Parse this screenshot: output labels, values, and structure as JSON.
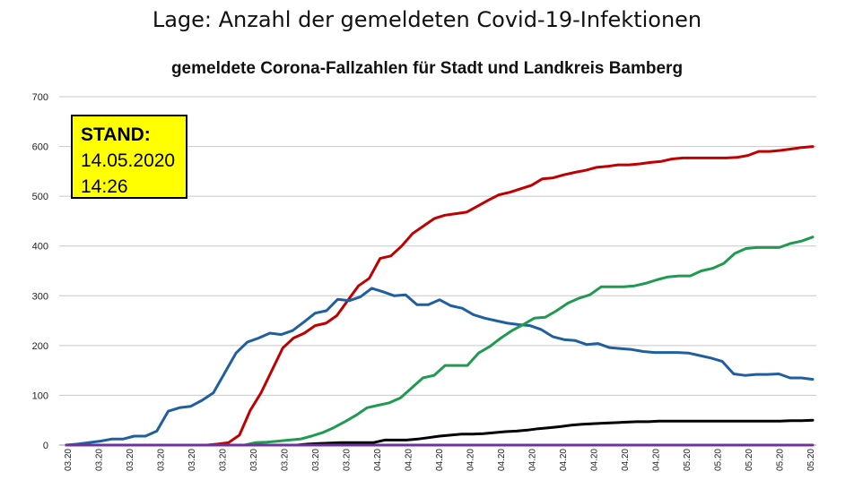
{
  "page": {
    "title": "Lage: Anzahl der gemeldeten Covid-19-Infektionen"
  },
  "stand": {
    "label": "STAND:",
    "date": "14.05.2020",
    "time": "14:26"
  },
  "chart_data": {
    "type": "line",
    "title": "gemeldete Corona-Fallzahlen für Stadt und Landkreis Bamberg",
    "xlabel": "",
    "ylabel": "",
    "ylim": [
      0,
      700
    ],
    "yticks": [
      0,
      100,
      200,
      300,
      400,
      500,
      600,
      700
    ],
    "grid": true,
    "legend": "none",
    "x_tick_labels": [
      "03.20",
      "03.20",
      "03.20",
      "03.20",
      "03.20",
      "03.20",
      "03.20",
      "03.20",
      "03.20",
      "03.20",
      "04.20",
      "04.20",
      "04.20",
      "04.20",
      "04.20",
      "04.20",
      "04.20",
      "04.20",
      "04.20",
      "04.20",
      "05.20",
      "05.20",
      "05.20",
      "05.20",
      "05.20"
    ],
    "series": [
      {
        "color": "#c00000",
        "values": [
          0,
          0,
          0,
          0,
          0,
          0,
          0,
          0,
          0,
          0,
          0,
          0,
          0,
          0,
          2,
          5,
          20,
          70,
          105,
          150,
          195,
          215,
          225,
          240,
          245,
          260,
          290,
          320,
          335,
          375,
          380,
          400,
          425,
          440,
          455,
          462,
          465,
          468,
          480,
          492,
          503,
          508,
          515,
          522,
          535,
          537,
          543,
          548,
          552,
          558,
          560,
          563,
          563,
          565,
          568,
          570,
          575,
          577,
          577,
          577,
          577,
          577,
          578,
          582,
          590,
          590,
          592,
          595,
          598,
          600
        ]
      },
      {
        "color": "#1f5fa0",
        "values": [
          0,
          2,
          5,
          8,
          12,
          12,
          18,
          18,
          28,
          68,
          75,
          78,
          90,
          105,
          145,
          185,
          207,
          215,
          225,
          222,
          230,
          247,
          265,
          270,
          293,
          290,
          298,
          315,
          308,
          300,
          302,
          282,
          282,
          292,
          280,
          275,
          262,
          255,
          250,
          245,
          242,
          240,
          232,
          218,
          212,
          210,
          202,
          204,
          196,
          194,
          192,
          188,
          186,
          186,
          186,
          185,
          180,
          175,
          168,
          143,
          140,
          142,
          142,
          143,
          135,
          135,
          132
        ]
      },
      {
        "color": "#1f9a50",
        "values": [
          0,
          0,
          0,
          0,
          0,
          0,
          0,
          0,
          0,
          0,
          0,
          0,
          0,
          0,
          0,
          0,
          0,
          5,
          6,
          8,
          10,
          12,
          18,
          25,
          35,
          47,
          60,
          75,
          80,
          85,
          95,
          115,
          135,
          140,
          160,
          160,
          160,
          185,
          198,
          215,
          230,
          242,
          255,
          257,
          270,
          285,
          295,
          302,
          318,
          318,
          318,
          320,
          325,
          332,
          338,
          340,
          340,
          350,
          355,
          365,
          385,
          395,
          397,
          397,
          397,
          405,
          410,
          418
        ]
      },
      {
        "color": "#000000",
        "values": [
          0,
          0,
          0,
          0,
          0,
          0,
          0,
          0,
          0,
          0,
          0,
          0,
          0,
          0,
          0,
          0,
          0,
          0,
          0,
          0,
          0,
          0,
          2,
          3,
          4,
          5,
          5,
          5,
          5,
          10,
          10,
          10,
          12,
          15,
          18,
          20,
          22,
          22,
          23,
          25,
          27,
          28,
          30,
          33,
          35,
          37,
          40,
          42,
          43,
          44,
          45,
          46,
          47,
          47,
          48,
          48,
          48,
          48,
          48,
          48,
          48,
          48,
          48,
          48,
          48,
          48,
          49,
          49,
          50
        ]
      },
      {
        "color": "#7030a0",
        "values": [
          0,
          0,
          0,
          0,
          0,
          0,
          0,
          0,
          0,
          0,
          0,
          0,
          0,
          0,
          0,
          0,
          0,
          0,
          0,
          0,
          0,
          0,
          0,
          0,
          0,
          0,
          0,
          0,
          0,
          0,
          0,
          0,
          0,
          0,
          0,
          0,
          0,
          0,
          0,
          0,
          0,
          0,
          0,
          0,
          0,
          0,
          0,
          0,
          0,
          0,
          0,
          0,
          0,
          0,
          0,
          0,
          0,
          0,
          0,
          0,
          0,
          0,
          0,
          0,
          0,
          0,
          0,
          0,
          0
        ]
      }
    ]
  }
}
